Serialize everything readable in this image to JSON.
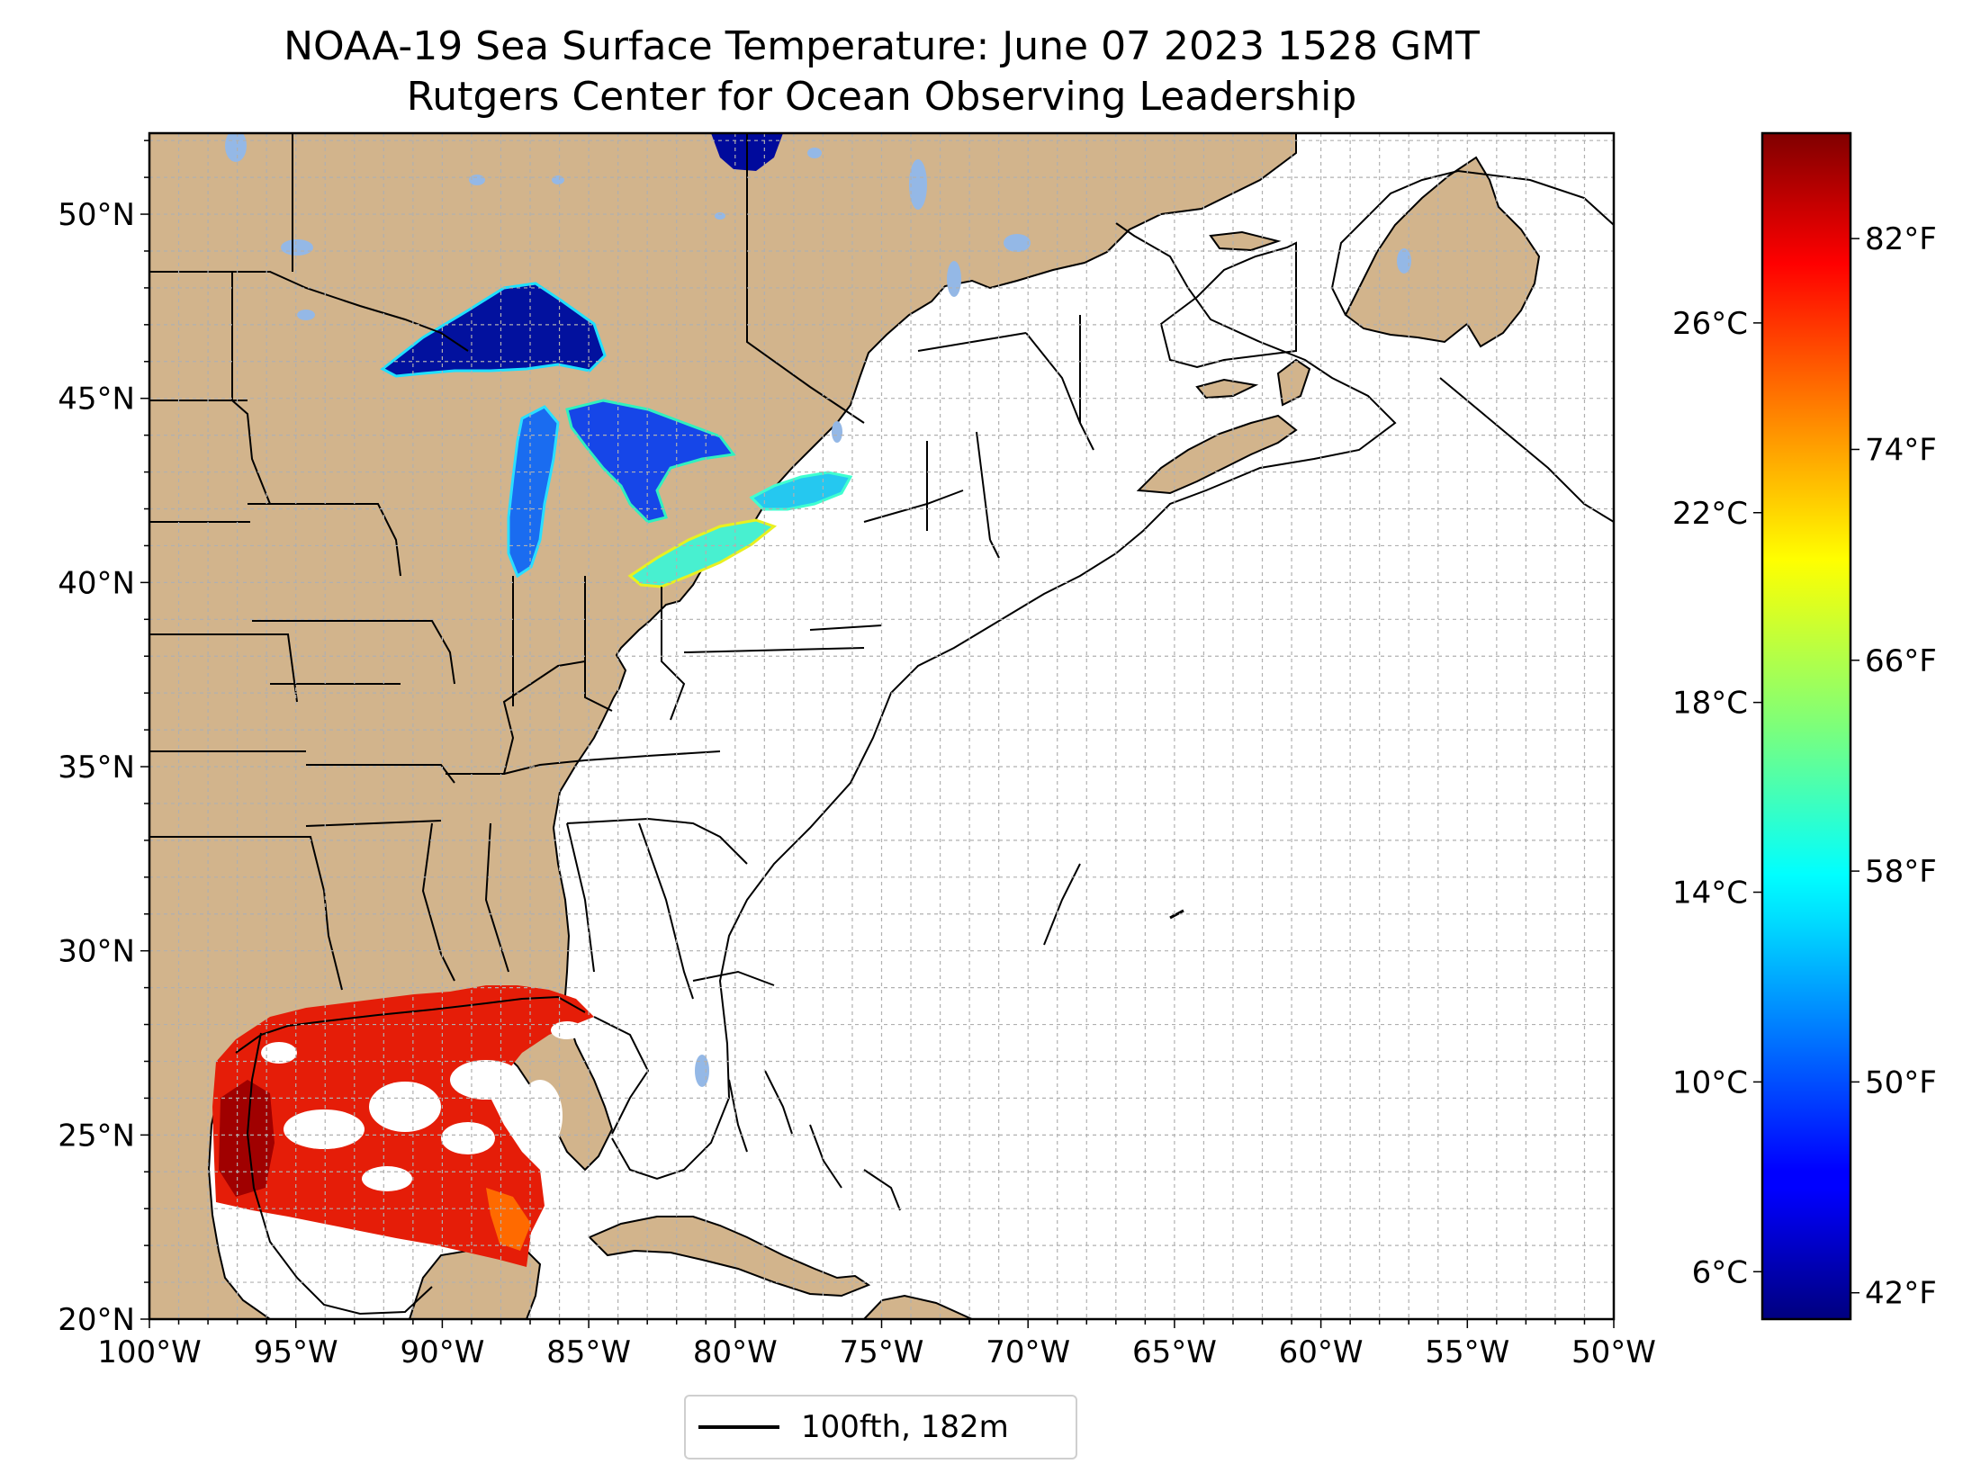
{
  "title": {
    "line1": "NOAA-19 Sea Surface Temperature: June 07 2023 1528 GMT",
    "line2": "Rutgers Center for Ocean Observing Leadership"
  },
  "map": {
    "lon_range": [
      -100,
      -50
    ],
    "lat_range": [
      20,
      52.2
    ],
    "lon_ticks": [
      {
        "value": -100,
        "label": "100°W"
      },
      {
        "value": -95,
        "label": "95°W"
      },
      {
        "value": -90,
        "label": "90°W"
      },
      {
        "value": -85,
        "label": "85°W"
      },
      {
        "value": -80,
        "label": "80°W"
      },
      {
        "value": -75,
        "label": "75°W"
      },
      {
        "value": -70,
        "label": "70°W"
      },
      {
        "value": -65,
        "label": "65°W"
      },
      {
        "value": -60,
        "label": "60°W"
      },
      {
        "value": -55,
        "label": "55°W"
      },
      {
        "value": -50,
        "label": "50°W"
      }
    ],
    "lat_ticks": [
      {
        "value": 20,
        "label": "20°N"
      },
      {
        "value": 25,
        "label": "25°N"
      },
      {
        "value": 30,
        "label": "30°N"
      },
      {
        "value": 35,
        "label": "35°N"
      },
      {
        "value": 40,
        "label": "40°N"
      },
      {
        "value": 45,
        "label": "45°N"
      },
      {
        "value": 50,
        "label": "50°N"
      }
    ],
    "grid": "on (dashed, 1° spacing)",
    "colors": {
      "land": "#d2b48c",
      "ocean": "#ffffff",
      "inland_lakes": "#94b8e6",
      "coastline": "#000000",
      "grid": "#b0b0b0"
    }
  },
  "colorbar": {
    "colormap": "jet",
    "celsius_range": [
      5.0,
      30.0
    ],
    "celsius_ticks": [
      {
        "value": 6,
        "label": "6°C"
      },
      {
        "value": 10,
        "label": "10°C"
      },
      {
        "value": 14,
        "label": "14°C"
      },
      {
        "value": 18,
        "label": "18°C"
      },
      {
        "value": 22,
        "label": "22°C"
      },
      {
        "value": 26,
        "label": "26°C"
      }
    ],
    "fahrenheit_ticks": [
      {
        "value": 42,
        "label": "42°F"
      },
      {
        "value": 50,
        "label": "50°F"
      },
      {
        "value": 58,
        "label": "58°F"
      },
      {
        "value": 66,
        "label": "66°F"
      },
      {
        "value": 74,
        "label": "74°F"
      },
      {
        "value": 82,
        "label": "82°F"
      }
    ]
  },
  "legend": {
    "entry_label": "100fth, 182m",
    "line_color": "#000000"
  }
}
